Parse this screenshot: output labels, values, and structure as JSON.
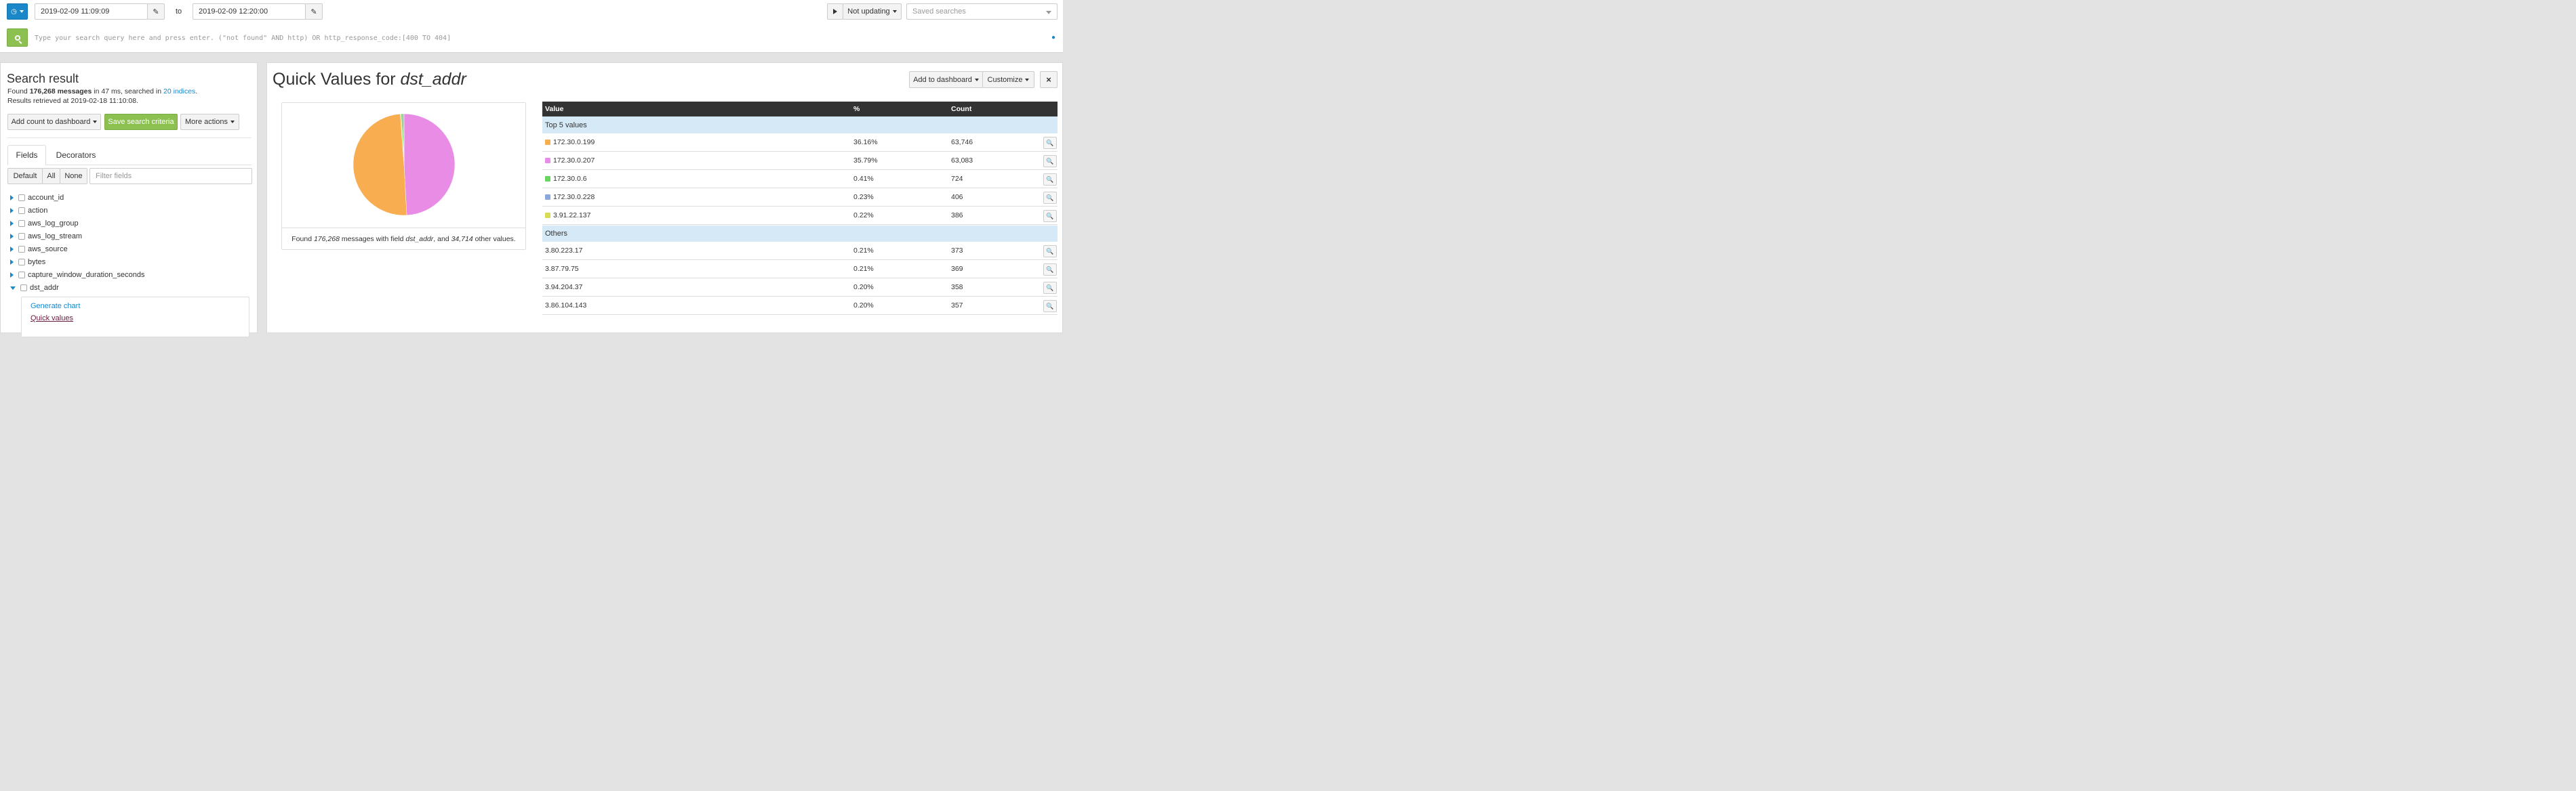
{
  "topbar": {
    "range_from": "2019-02-09 11:09:09",
    "to_label": "to",
    "range_to": "2019-02-09 12:20:00",
    "not_updating_label": "Not updating",
    "saved_searches_placeholder": "Saved searches",
    "query_placeholder": "Type your search query here and press enter. (\"not found\" AND http) OR http_response_code:[400 TO 404]"
  },
  "left": {
    "title": "Search result",
    "found_prefix": "Found ",
    "found_count": "176,268 messages",
    "found_mid": " in 47 ms, searched in ",
    "indices_link": "20 indices",
    "found_suffix": ".",
    "retrieved": "Results retrieved at 2019-02-18 11:10:08.",
    "add_count_label": "Add count to dashboard",
    "save_criteria_label": "Save search criteria",
    "more_actions_label": "More actions",
    "tabs": [
      "Fields",
      "Decorators"
    ],
    "filter_buttons": [
      "Default",
      "All",
      "None"
    ],
    "filter_placeholder": "Filter fields",
    "fields": [
      "account_id",
      "action",
      "aws_log_group",
      "aws_log_stream",
      "aws_source",
      "bytes",
      "capture_window_duration_seconds",
      "dst_addr"
    ],
    "submenu": [
      "Generate chart",
      "Quick values"
    ]
  },
  "main": {
    "title_prefix": "Quick Values for ",
    "title_field": "dst_addr",
    "add_dashboard_label": "Add to dashboard",
    "customize_label": "Customize",
    "close_label": "×",
    "summary": {
      "prefix": "Found ",
      "count": "176,268",
      "mid1": " messages with field ",
      "field": "dst_addr",
      "mid2": ", and ",
      "other": "34,714",
      "suffix": " other values."
    },
    "table": {
      "headers": [
        "Value",
        "%",
        "Count"
      ],
      "top_label": "Top 5 values",
      "others_label": "Others",
      "top_rows": [
        {
          "value": "172.30.0.199",
          "pct": "36.16%",
          "count": "63,746",
          "color": "#f7ad50"
        },
        {
          "value": "172.30.0.207",
          "pct": "35.79%",
          "count": "63,083",
          "color": "#e98ce6"
        },
        {
          "value": "172.30.0.6",
          "pct": "0.41%",
          "count": "724",
          "color": "#6bd35f"
        },
        {
          "value": "172.30.0.228",
          "pct": "0.23%",
          "count": "406",
          "color": "#8aa8dc"
        },
        {
          "value": "3.91.22.137",
          "pct": "0.22%",
          "count": "386",
          "color": "#d8dd55"
        }
      ],
      "other_rows": [
        {
          "value": "3.80.223.17",
          "pct": "0.21%",
          "count": "373"
        },
        {
          "value": "3.87.79.75",
          "pct": "0.21%",
          "count": "369"
        },
        {
          "value": "3.94.204.37",
          "pct": "0.20%",
          "count": "358"
        },
        {
          "value": "3.86.104.143",
          "pct": "0.20%",
          "count": "357"
        }
      ]
    }
  },
  "chart_data": {
    "type": "pie",
    "categories": [
      "172.30.0.199",
      "172.30.0.207",
      "172.30.0.6",
      "172.30.0.228",
      "3.91.22.137"
    ],
    "values": [
      63746,
      63083,
      724,
      406,
      386
    ],
    "colors": [
      "#f7ad50",
      "#e98ce6",
      "#6bd35f",
      "#8aa8dc",
      "#d8dd55"
    ]
  },
  "colors": {
    "primary_blue": "#1a87c9",
    "green": "#8cc152",
    "table_header": "#333333",
    "group_row": "#d6e9f6"
  }
}
